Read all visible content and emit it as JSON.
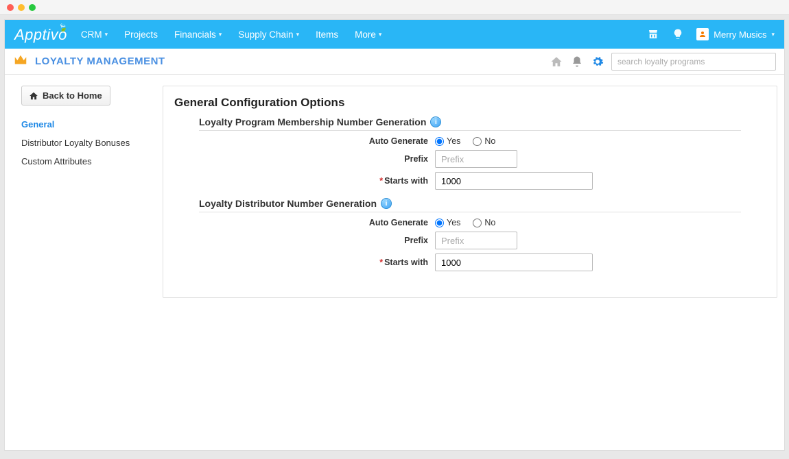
{
  "logo": "Apptivo",
  "nav": {
    "items": [
      {
        "label": "CRM",
        "dropdown": true
      },
      {
        "label": "Projects",
        "dropdown": false
      },
      {
        "label": "Financials",
        "dropdown": true
      },
      {
        "label": "Supply Chain",
        "dropdown": true
      },
      {
        "label": "Items",
        "dropdown": false
      },
      {
        "label": "More",
        "dropdown": true
      }
    ],
    "user_name": "Merry Musics"
  },
  "subheader": {
    "page_title": "LOYALTY MANAGEMENT",
    "search_placeholder": "search loyalty programs"
  },
  "sidebar": {
    "back_label": "Back to Home",
    "links": [
      {
        "label": "General",
        "active": true
      },
      {
        "label": "Distributor Loyalty Bonuses",
        "active": false
      },
      {
        "label": "Custom Attributes",
        "active": false
      }
    ]
  },
  "panel": {
    "title": "General Configuration Options",
    "section1": {
      "title": "Loyalty Program Membership Number Generation",
      "auto_generate_label": "Auto Generate",
      "opt_yes": "Yes",
      "opt_no": "No",
      "prefix_label": "Prefix",
      "prefix_placeholder": "Prefix",
      "starts_with_label": "Starts with",
      "starts_with_value": "1000"
    },
    "section2": {
      "title": "Loyalty Distributor Number Generation",
      "auto_generate_label": "Auto Generate",
      "opt_yes": "Yes",
      "opt_no": "No",
      "prefix_label": "Prefix",
      "prefix_placeholder": "Prefix",
      "starts_with_label": "Starts with",
      "starts_with_value": "1000"
    }
  }
}
